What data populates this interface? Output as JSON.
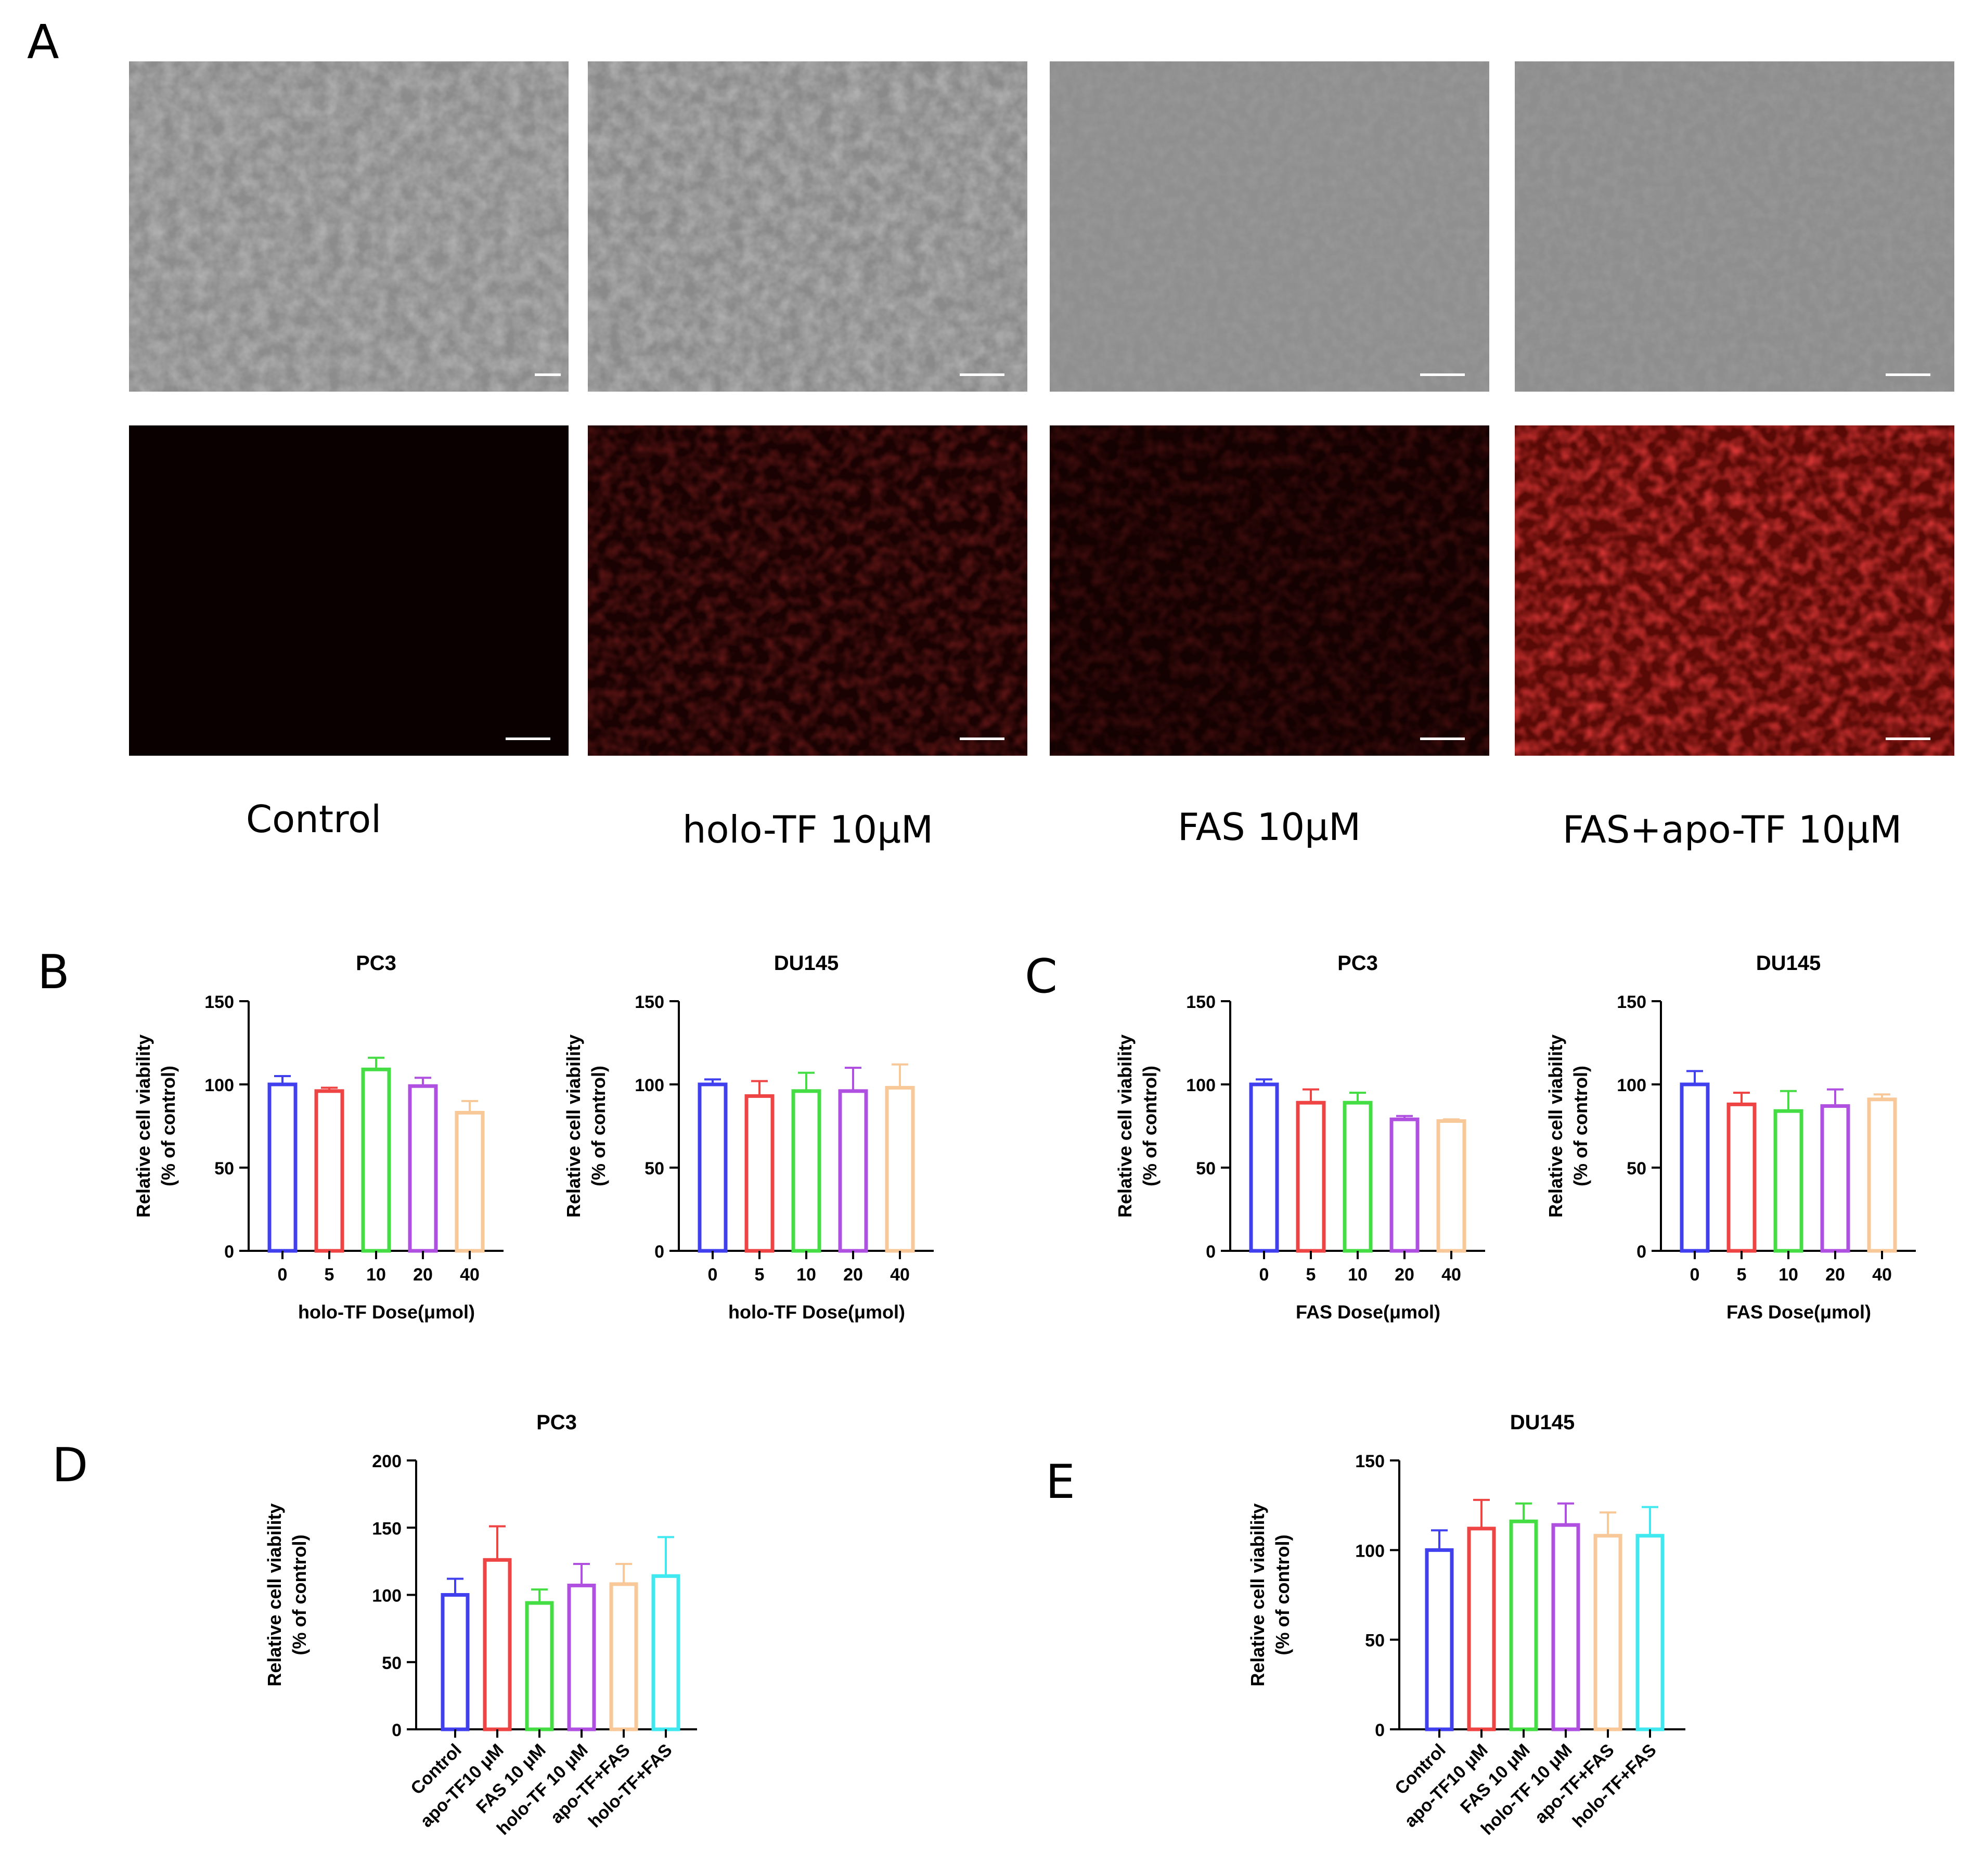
{
  "panel_letters": [
    "A",
    "B",
    "C",
    "D",
    "E"
  ],
  "micrograph_labels": [
    "Control",
    "holo-TF 10μM",
    "FAS 10μM",
    "FAS+apo-TF 10μM"
  ],
  "colors": {
    "blue": "#4040ee",
    "red": "#ee4444",
    "green": "#44dd44",
    "purple": "#b050e0",
    "peach": "#f8c898",
    "cyan": "#40e8f0"
  },
  "chart_data": [
    {
      "type": "bar",
      "title": "PC3",
      "xlabel": "holo-TF Dose(μmol)",
      "ylabel": "Relative cell viability (% of control)",
      "categories": [
        "0",
        "5",
        "10",
        "20",
        "40"
      ],
      "values": [
        100,
        96,
        109,
        99,
        83
      ],
      "errors": [
        5,
        2,
        7,
        5,
        7
      ],
      "ylim": [
        0,
        150
      ],
      "yticks": [
        "0",
        "50",
        "100",
        "150"
      ],
      "colors": [
        "#4040ee",
        "#ee4444",
        "#44dd44",
        "#b050e0",
        "#f8c898"
      ]
    },
    {
      "type": "bar",
      "title": "DU145",
      "xlabel": "holo-TF Dose(μmol)",
      "ylabel": "Relative cell viability (% of control)",
      "categories": [
        "0",
        "5",
        "10",
        "20",
        "40"
      ],
      "values": [
        100,
        93,
        96,
        96,
        98
      ],
      "errors": [
        3,
        9,
        11,
        14,
        14
      ],
      "ylim": [
        0,
        150
      ],
      "yticks": [
        "0",
        "50",
        "100",
        "150"
      ],
      "colors": [
        "#4040ee",
        "#ee4444",
        "#44dd44",
        "#b050e0",
        "#f8c898"
      ]
    },
    {
      "type": "bar",
      "title": "PC3",
      "xlabel": "FAS Dose(μmol)",
      "ylabel": "Relative cell viability (% of control)",
      "categories": [
        "0",
        "5",
        "10",
        "20",
        "40"
      ],
      "values": [
        100,
        89,
        89,
        79,
        78
      ],
      "errors": [
        3,
        8,
        6,
        2,
        1
      ],
      "ylim": [
        0,
        150
      ],
      "yticks": [
        "0",
        "50",
        "100",
        "150"
      ],
      "colors": [
        "#4040ee",
        "#ee4444",
        "#44dd44",
        "#b050e0",
        "#f8c898"
      ]
    },
    {
      "type": "bar",
      "title": "DU145",
      "xlabel": "FAS Dose(μmol)",
      "ylabel": "Relative cell viability (% of control)",
      "categories": [
        "0",
        "5",
        "10",
        "20",
        "40"
      ],
      "values": [
        100,
        88,
        84,
        87,
        91
      ],
      "errors": [
        8,
        7,
        12,
        10,
        3
      ],
      "ylim": [
        0,
        150
      ],
      "yticks": [
        "0",
        "50",
        "100",
        "150"
      ],
      "colors": [
        "#4040ee",
        "#ee4444",
        "#44dd44",
        "#b050e0",
        "#f8c898"
      ]
    },
    {
      "type": "bar",
      "title": "PC3",
      "xlabel": "",
      "ylabel": "Relative cell viability (% of control)",
      "categories": [
        "Control",
        "apo-TF10 μM",
        "FAS 10 μM",
        "holo-TF 10 μM",
        "apo-TF+FAS",
        "holo-TF+FAS"
      ],
      "values": [
        100,
        126,
        94,
        107,
        108,
        114
      ],
      "errors": [
        12,
        25,
        10,
        16,
        15,
        29
      ],
      "ylim": [
        0,
        200
      ],
      "yticks": [
        "0",
        "50",
        "100",
        "150",
        "200"
      ],
      "colors": [
        "#4040ee",
        "#ee4444",
        "#44dd44",
        "#b050e0",
        "#f8c898",
        "#40e8f0"
      ]
    },
    {
      "type": "bar",
      "title": "DU145",
      "xlabel": "",
      "ylabel": "Relative cell viability (% of control)",
      "categories": [
        "Control",
        "apo-TF10 μM",
        "FAS 10 μM",
        "holo-TF 10 μM",
        "apo-TF+FAS",
        "holo-TF+FAS"
      ],
      "values": [
        100,
        112,
        116,
        114,
        108,
        108
      ],
      "errors": [
        11,
        16,
        10,
        12,
        13,
        16
      ],
      "ylim": [
        0,
        150
      ],
      "yticks": [
        "0",
        "50",
        "100",
        "150"
      ],
      "colors": [
        "#4040ee",
        "#ee4444",
        "#44dd44",
        "#b050e0",
        "#f8c898",
        "#40e8f0"
      ]
    }
  ]
}
